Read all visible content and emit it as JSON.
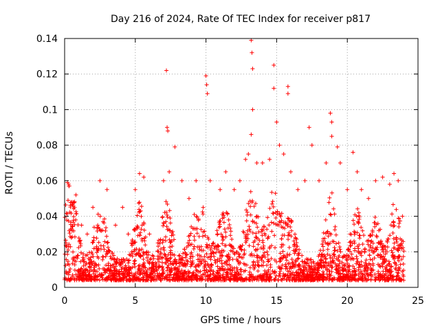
{
  "chart_data": {
    "type": "scatter",
    "title": "Day 216 of 2024, Rate Of TEC Index for receiver p817",
    "xlabel": "GPS time / hours",
    "ylabel": "ROTI / TECUs",
    "xlim": [
      0,
      25
    ],
    "ylim": [
      0,
      0.14
    ],
    "xticks": [
      0,
      5,
      10,
      15,
      20,
      25
    ],
    "xtick_labels": [
      "0",
      "5",
      "10",
      "15",
      "20",
      "25"
    ],
    "yticks": [
      0,
      0.02,
      0.04,
      0.06,
      0.08,
      0.1,
      0.12,
      0.14
    ],
    "ytick_labels": [
      "0",
      "0.02",
      "0.04",
      "0.06",
      "0.08",
      "0.1",
      "0.12",
      "0.14"
    ],
    "grid": true,
    "marker": "+",
    "series_color": "#ff0000",
    "series": [
      {
        "name": "ROTI",
        "points": [
          [
            0.1,
            0.025
          ],
          [
            0.2,
            0.059
          ],
          [
            0.3,
            0.057
          ],
          [
            0.5,
            0.048
          ],
          [
            0.8,
            0.052
          ],
          [
            1.2,
            0.035
          ],
          [
            1.6,
            0.03
          ],
          [
            2.0,
            0.045
          ],
          [
            2.5,
            0.06
          ],
          [
            3.0,
            0.055
          ],
          [
            3.6,
            0.035
          ],
          [
            4.1,
            0.045
          ],
          [
            4.5,
            0.03
          ],
          [
            5.0,
            0.055
          ],
          [
            5.3,
            0.064
          ],
          [
            5.6,
            0.062
          ],
          [
            6.0,
            0.03
          ],
          [
            6.6,
            0.025
          ],
          [
            7.0,
            0.06
          ],
          [
            7.2,
            0.122
          ],
          [
            7.25,
            0.09
          ],
          [
            7.3,
            0.088
          ],
          [
            7.4,
            0.065
          ],
          [
            7.8,
            0.079
          ],
          [
            8.3,
            0.06
          ],
          [
            8.8,
            0.05
          ],
          [
            9.3,
            0.06
          ],
          [
            9.8,
            0.045
          ],
          [
            10.0,
            0.119
          ],
          [
            10.05,
            0.114
          ],
          [
            10.1,
            0.109
          ],
          [
            10.3,
            0.06
          ],
          [
            11.0,
            0.055
          ],
          [
            11.4,
            0.065
          ],
          [
            12.0,
            0.055
          ],
          [
            12.4,
            0.06
          ],
          [
            12.8,
            0.072
          ],
          [
            13.0,
            0.075
          ],
          [
            13.2,
            0.139
          ],
          [
            13.25,
            0.132
          ],
          [
            13.3,
            0.123
          ],
          [
            13.3,
            0.1
          ],
          [
            13.2,
            0.086
          ],
          [
            13.6,
            0.07
          ],
          [
            14.0,
            0.07
          ],
          [
            14.5,
            0.072
          ],
          [
            14.8,
            0.125
          ],
          [
            14.8,
            0.112
          ],
          [
            15.0,
            0.093
          ],
          [
            15.2,
            0.08
          ],
          [
            15.5,
            0.075
          ],
          [
            15.8,
            0.113
          ],
          [
            15.8,
            0.109
          ],
          [
            16.0,
            0.065
          ],
          [
            16.5,
            0.055
          ],
          [
            17.0,
            0.06
          ],
          [
            17.3,
            0.09
          ],
          [
            17.5,
            0.08
          ],
          [
            18.0,
            0.06
          ],
          [
            18.5,
            0.07
          ],
          [
            18.8,
            0.098
          ],
          [
            18.9,
            0.093
          ],
          [
            18.9,
            0.085
          ],
          [
            19.3,
            0.079
          ],
          [
            19.5,
            0.07
          ],
          [
            20.0,
            0.055
          ],
          [
            20.2,
            0.03
          ],
          [
            20.4,
            0.076
          ],
          [
            20.7,
            0.065
          ],
          [
            21.0,
            0.055
          ],
          [
            21.5,
            0.05
          ],
          [
            22.0,
            0.06
          ],
          [
            22.5,
            0.062
          ],
          [
            23.0,
            0.058
          ],
          [
            23.3,
            0.064
          ],
          [
            23.6,
            0.06
          ],
          [
            23.9,
            0.04
          ]
        ]
      }
    ],
    "note": "Dense band of thousands of points between ~0.005 and ~0.03 across 0-24 h; listed points are representative peaks."
  }
}
